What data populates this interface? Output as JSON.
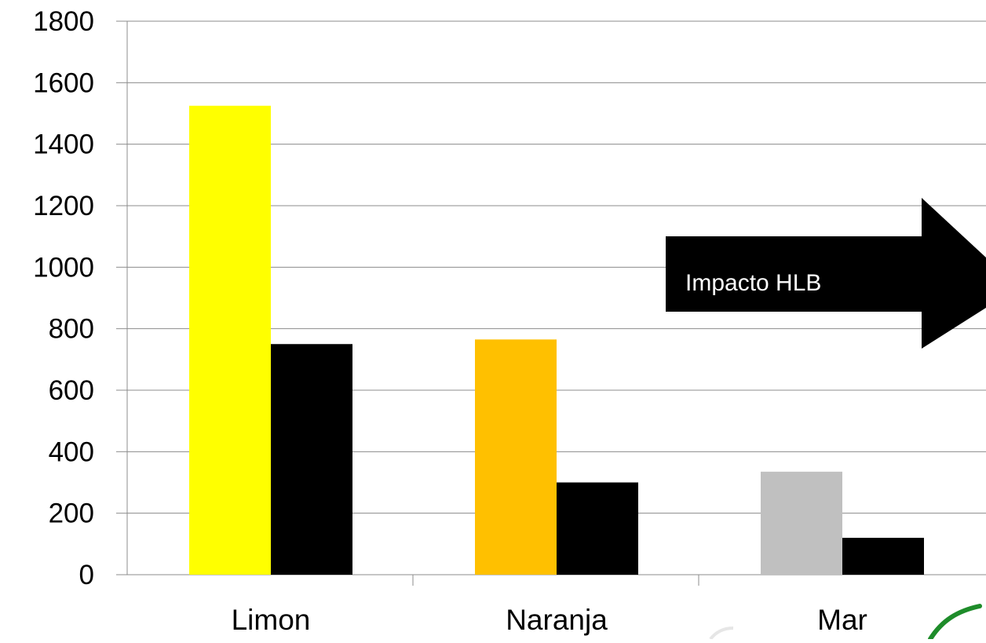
{
  "chart_data": {
    "type": "bar",
    "title": "",
    "xlabel": "",
    "ylabel": "",
    "ylim": [
      0,
      1800
    ],
    "yticks": [
      0,
      200,
      400,
      600,
      800,
      1000,
      1200,
      1400,
      1600,
      1800
    ],
    "grid": true,
    "categories": [
      "Limon",
      "Naranja",
      "Mar"
    ],
    "series": [
      {
        "values": [
          1525,
          765,
          335
        ],
        "colors": [
          "#ffff00",
          "#ffc000",
          "#c0c0c0"
        ]
      },
      {
        "values": [
          750,
          300,
          120
        ],
        "colors": [
          "#000000",
          "#000000",
          "#000000"
        ]
      }
    ],
    "annotation": {
      "text": "Impacto HLB",
      "shape": "right-arrow",
      "fill": "#000000",
      "text_color": "#ffffff"
    }
  }
}
